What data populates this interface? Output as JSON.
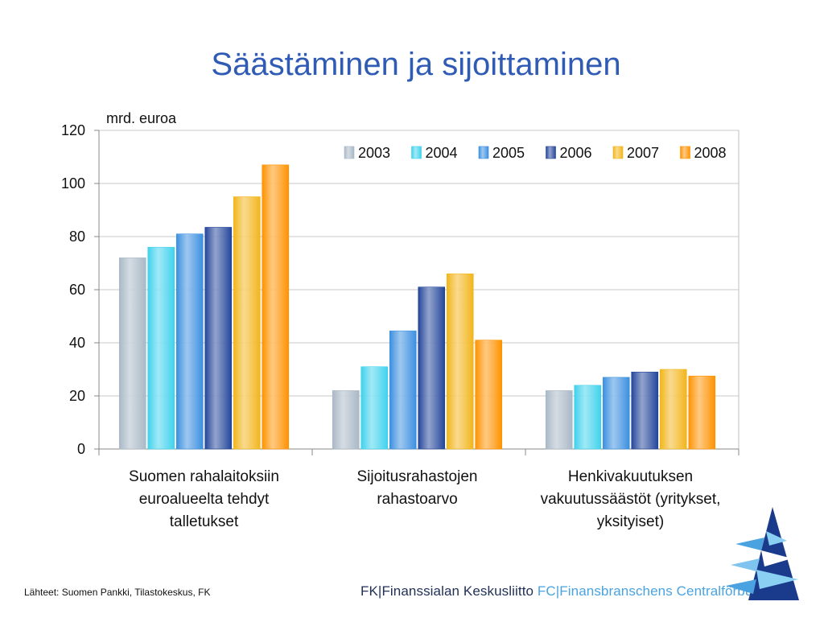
{
  "slide": {
    "title": "Säästäminen ja sijoittaminen",
    "source": "Lähteet: Suomen Pankki, Tilastokeskus, FK",
    "org_fi": "FK|Finanssialan Keskusliitto",
    "org_sv": "FC|Finansbranschens Centralförbund"
  },
  "chart_data": {
    "type": "bar",
    "unit_label": "mrd. euroa",
    "categories": [
      [
        "Suomen rahalaitoksiin",
        "euroalueelta tehdyt",
        "talletukset"
      ],
      [
        "Sijoitusrahastojen",
        "rahastoarvo"
      ],
      [
        "Henkivakuutuksen",
        "vakuutussäästöt (yritykset,",
        "yksityiset)"
      ]
    ],
    "ylim": [
      0,
      120
    ],
    "yticks": [
      0,
      20,
      40,
      60,
      80,
      100,
      120
    ],
    "grid": true,
    "legend_position": "top-right",
    "series": [
      {
        "name": "2003",
        "values": [
          72,
          22,
          22
        ],
        "color": "#a9b8c6"
      },
      {
        "name": "2004",
        "values": [
          76,
          31,
          24
        ],
        "color": "#3fd2ec"
      },
      {
        "name": "2005",
        "values": [
          81,
          44.5,
          27
        ],
        "color": "#3a8fe0"
      },
      {
        "name": "2006",
        "values": [
          83.5,
          61,
          29
        ],
        "color": "#23459a"
      },
      {
        "name": "2007",
        "values": [
          95,
          66,
          30
        ],
        "color": "#f2b51a"
      },
      {
        "name": "2008",
        "values": [
          107,
          41,
          27.5
        ],
        "color": "#ff9200"
      }
    ]
  }
}
